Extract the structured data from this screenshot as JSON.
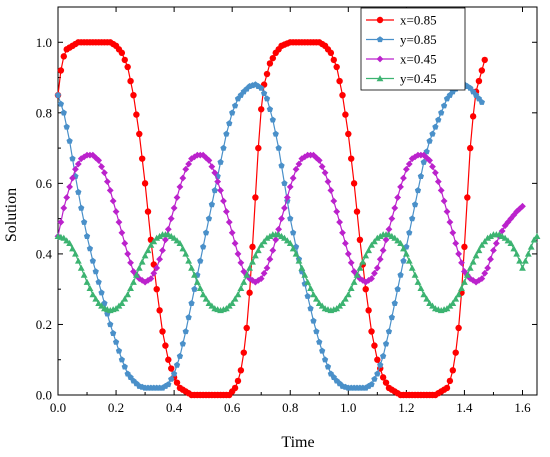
{
  "chart_data": {
    "type": "line",
    "title": "",
    "xlabel": "Time",
    "ylabel": "Solution",
    "xlim": [
      0.0,
      1.65
    ],
    "ylim": [
      0.0,
      1.1
    ],
    "xticks": [
      0.0,
      0.2,
      0.4,
      0.6,
      0.8,
      1.0,
      1.2,
      1.4,
      1.6
    ],
    "yticks": [
      0.0,
      0.2,
      0.4,
      0.6,
      0.8,
      1.0
    ],
    "xtick_labels": [
      "0.0",
      "0.2",
      "0.4",
      "0.6",
      "0.8",
      "1.0",
      "1.2",
      "1.4",
      "1.6"
    ],
    "ytick_labels": [
      "0.0",
      "0.2",
      "0.4",
      "0.6",
      "0.8",
      "1.0"
    ],
    "legend_position": "top-right",
    "grid": false,
    "series": [
      {
        "name": "x=0.85",
        "color": "#ff0000",
        "marker": "circle",
        "x_end": 1.47,
        "points": [
          [
            0.0,
            0.85
          ],
          [
            0.01,
            0.92
          ],
          [
            0.02,
            0.96
          ],
          [
            0.03,
            0.98
          ],
          [
            0.05,
            0.99
          ],
          [
            0.07,
            1.0
          ],
          [
            0.1,
            1.0
          ],
          [
            0.15,
            1.0
          ],
          [
            0.18,
            1.0
          ],
          [
            0.2,
            0.99
          ],
          [
            0.22,
            0.97
          ],
          [
            0.24,
            0.93
          ],
          [
            0.26,
            0.85
          ],
          [
            0.28,
            0.74
          ],
          [
            0.3,
            0.6
          ],
          [
            0.32,
            0.44
          ],
          [
            0.34,
            0.3
          ],
          [
            0.36,
            0.18
          ],
          [
            0.38,
            0.1
          ],
          [
            0.4,
            0.05
          ],
          [
            0.42,
            0.02
          ],
          [
            0.44,
            0.01
          ],
          [
            0.46,
            0.0
          ],
          [
            0.55,
            0.0
          ],
          [
            0.59,
            0.0
          ],
          [
            0.6,
            0.01
          ],
          [
            0.61,
            0.02
          ],
          [
            0.62,
            0.04
          ],
          [
            0.63,
            0.07
          ],
          [
            0.64,
            0.12
          ],
          [
            0.65,
            0.19
          ],
          [
            0.66,
            0.29
          ],
          [
            0.67,
            0.42
          ],
          [
            0.68,
            0.56
          ],
          [
            0.69,
            0.7
          ],
          [
            0.7,
            0.81
          ],
          [
            0.71,
            0.88
          ],
          [
            0.73,
            0.94
          ],
          [
            0.75,
            0.97
          ],
          [
            0.77,
            0.99
          ],
          [
            0.8,
            1.0
          ],
          [
            0.85,
            1.0
          ],
          [
            0.9,
            1.0
          ],
          [
            0.92,
            0.99
          ],
          [
            0.94,
            0.97
          ],
          [
            0.96,
            0.93
          ],
          [
            0.98,
            0.85
          ],
          [
            1.0,
            0.74
          ],
          [
            1.02,
            0.6
          ],
          [
            1.04,
            0.44
          ],
          [
            1.06,
            0.3
          ],
          [
            1.08,
            0.18
          ],
          [
            1.1,
            0.1
          ],
          [
            1.12,
            0.05
          ],
          [
            1.14,
            0.02
          ],
          [
            1.16,
            0.01
          ],
          [
            1.18,
            0.0
          ],
          [
            1.27,
            0.0
          ],
          [
            1.3,
            0.0
          ],
          [
            1.32,
            0.01
          ],
          [
            1.34,
            0.02
          ],
          [
            1.35,
            0.04
          ],
          [
            1.36,
            0.07
          ],
          [
            1.37,
            0.12
          ],
          [
            1.38,
            0.19
          ],
          [
            1.39,
            0.29
          ],
          [
            1.4,
            0.42
          ],
          [
            1.41,
            0.56
          ],
          [
            1.42,
            0.7
          ],
          [
            1.43,
            0.79
          ],
          [
            1.44,
            0.86
          ],
          [
            1.46,
            0.92
          ],
          [
            1.47,
            0.95
          ]
        ]
      },
      {
        "name": "y=0.85",
        "color": "#4a90c9",
        "marker": "pentagon",
        "x_end": 1.46,
        "points": [
          [
            0.0,
            0.85
          ],
          [
            0.02,
            0.8
          ],
          [
            0.04,
            0.72
          ],
          [
            0.06,
            0.62
          ],
          [
            0.08,
            0.53
          ],
          [
            0.1,
            0.45
          ],
          [
            0.12,
            0.38
          ],
          [
            0.14,
            0.32
          ],
          [
            0.16,
            0.26
          ],
          [
            0.18,
            0.2
          ],
          [
            0.2,
            0.15
          ],
          [
            0.22,
            0.1
          ],
          [
            0.24,
            0.06
          ],
          [
            0.26,
            0.04
          ],
          [
            0.28,
            0.025
          ],
          [
            0.3,
            0.02
          ],
          [
            0.34,
            0.02
          ],
          [
            0.36,
            0.02
          ],
          [
            0.38,
            0.03
          ],
          [
            0.4,
            0.06
          ],
          [
            0.42,
            0.11
          ],
          [
            0.44,
            0.18
          ],
          [
            0.46,
            0.26
          ],
          [
            0.48,
            0.34
          ],
          [
            0.5,
            0.42
          ],
          [
            0.52,
            0.5
          ],
          [
            0.54,
            0.58
          ],
          [
            0.56,
            0.66
          ],
          [
            0.58,
            0.74
          ],
          [
            0.6,
            0.8
          ],
          [
            0.62,
            0.84
          ],
          [
            0.64,
            0.86
          ],
          [
            0.66,
            0.875
          ],
          [
            0.68,
            0.88
          ],
          [
            0.7,
            0.87
          ],
          [
            0.72,
            0.84
          ],
          [
            0.74,
            0.78
          ],
          [
            0.76,
            0.7
          ],
          [
            0.78,
            0.6
          ],
          [
            0.8,
            0.5
          ],
          [
            0.82,
            0.42
          ],
          [
            0.84,
            0.35
          ],
          [
            0.86,
            0.28
          ],
          [
            0.88,
            0.21
          ],
          [
            0.9,
            0.15
          ],
          [
            0.92,
            0.1
          ],
          [
            0.94,
            0.06
          ],
          [
            0.96,
            0.04
          ],
          [
            0.98,
            0.025
          ],
          [
            1.0,
            0.02
          ],
          [
            1.06,
            0.02
          ],
          [
            1.08,
            0.03
          ],
          [
            1.1,
            0.06
          ],
          [
            1.12,
            0.11
          ],
          [
            1.14,
            0.18
          ],
          [
            1.16,
            0.26
          ],
          [
            1.18,
            0.34
          ],
          [
            1.2,
            0.42
          ],
          [
            1.22,
            0.5
          ],
          [
            1.24,
            0.58
          ],
          [
            1.26,
            0.66
          ],
          [
            1.28,
            0.72
          ],
          [
            1.3,
            0.76
          ],
          [
            1.32,
            0.8
          ],
          [
            1.34,
            0.84
          ],
          [
            1.36,
            0.86
          ],
          [
            1.38,
            0.875
          ],
          [
            1.4,
            0.88
          ],
          [
            1.42,
            0.87
          ],
          [
            1.44,
            0.85
          ],
          [
            1.46,
            0.83
          ]
        ]
      },
      {
        "name": "x=0.45",
        "color": "#bb22cc",
        "marker": "diamond",
        "x_end": 1.6,
        "points": [
          [
            0.0,
            0.45
          ],
          [
            0.02,
            0.53
          ],
          [
            0.04,
            0.59
          ],
          [
            0.06,
            0.64
          ],
          [
            0.08,
            0.67
          ],
          [
            0.1,
            0.68
          ],
          [
            0.12,
            0.68
          ],
          [
            0.14,
            0.665
          ],
          [
            0.16,
            0.63
          ],
          [
            0.18,
            0.58
          ],
          [
            0.2,
            0.52
          ],
          [
            0.22,
            0.46
          ],
          [
            0.24,
            0.4
          ],
          [
            0.26,
            0.35
          ],
          [
            0.28,
            0.33
          ],
          [
            0.3,
            0.32
          ],
          [
            0.32,
            0.33
          ],
          [
            0.34,
            0.36
          ],
          [
            0.36,
            0.41
          ],
          [
            0.38,
            0.47
          ],
          [
            0.4,
            0.53
          ],
          [
            0.42,
            0.59
          ],
          [
            0.44,
            0.64
          ],
          [
            0.46,
            0.67
          ],
          [
            0.48,
            0.68
          ],
          [
            0.5,
            0.68
          ],
          [
            0.52,
            0.665
          ],
          [
            0.54,
            0.63
          ],
          [
            0.56,
            0.58
          ],
          [
            0.58,
            0.52
          ],
          [
            0.6,
            0.46
          ],
          [
            0.62,
            0.4
          ],
          [
            0.64,
            0.35
          ],
          [
            0.66,
            0.33
          ],
          [
            0.68,
            0.32
          ],
          [
            0.7,
            0.33
          ],
          [
            0.72,
            0.36
          ],
          [
            0.74,
            0.41
          ],
          [
            0.76,
            0.47
          ],
          [
            0.78,
            0.53
          ],
          [
            0.8,
            0.59
          ],
          [
            0.82,
            0.64
          ],
          [
            0.84,
            0.67
          ],
          [
            0.86,
            0.68
          ],
          [
            0.88,
            0.68
          ],
          [
            0.9,
            0.665
          ],
          [
            0.92,
            0.63
          ],
          [
            0.94,
            0.58
          ],
          [
            0.96,
            0.52
          ],
          [
            0.98,
            0.46
          ],
          [
            1.0,
            0.4
          ],
          [
            1.02,
            0.35
          ],
          [
            1.04,
            0.33
          ],
          [
            1.06,
            0.32
          ],
          [
            1.08,
            0.33
          ],
          [
            1.1,
            0.36
          ],
          [
            1.12,
            0.41
          ],
          [
            1.14,
            0.47
          ],
          [
            1.16,
            0.53
          ],
          [
            1.18,
            0.59
          ],
          [
            1.2,
            0.64
          ],
          [
            1.22,
            0.67
          ],
          [
            1.24,
            0.68
          ],
          [
            1.26,
            0.68
          ],
          [
            1.28,
            0.665
          ],
          [
            1.3,
            0.63
          ],
          [
            1.32,
            0.58
          ],
          [
            1.34,
            0.52
          ],
          [
            1.36,
            0.46
          ],
          [
            1.38,
            0.4
          ],
          [
            1.4,
            0.35
          ],
          [
            1.42,
            0.33
          ],
          [
            1.44,
            0.32
          ],
          [
            1.46,
            0.33
          ],
          [
            1.48,
            0.36
          ],
          [
            1.5,
            0.41
          ],
          [
            1.52,
            0.45
          ],
          [
            1.54,
            0.48
          ],
          [
            1.56,
            0.5
          ],
          [
            1.58,
            0.52
          ],
          [
            1.6,
            0.535
          ]
        ]
      },
      {
        "name": "y=0.45",
        "color": "#3cb371",
        "marker": "triangle",
        "x_end": 1.65,
        "points": [
          [
            0.0,
            0.45
          ],
          [
            0.02,
            0.445
          ],
          [
            0.04,
            0.43
          ],
          [
            0.06,
            0.4
          ],
          [
            0.08,
            0.36
          ],
          [
            0.1,
            0.32
          ],
          [
            0.12,
            0.285
          ],
          [
            0.14,
            0.26
          ],
          [
            0.16,
            0.245
          ],
          [
            0.18,
            0.24
          ],
          [
            0.2,
            0.245
          ],
          [
            0.22,
            0.26
          ],
          [
            0.24,
            0.285
          ],
          [
            0.26,
            0.32
          ],
          [
            0.28,
            0.36
          ],
          [
            0.3,
            0.395
          ],
          [
            0.32,
            0.425
          ],
          [
            0.34,
            0.445
          ],
          [
            0.36,
            0.455
          ],
          [
            0.38,
            0.455
          ],
          [
            0.4,
            0.445
          ],
          [
            0.42,
            0.43
          ],
          [
            0.44,
            0.4
          ],
          [
            0.46,
            0.36
          ],
          [
            0.48,
            0.32
          ],
          [
            0.5,
            0.285
          ],
          [
            0.52,
            0.26
          ],
          [
            0.54,
            0.245
          ],
          [
            0.56,
            0.24
          ],
          [
            0.58,
            0.245
          ],
          [
            0.6,
            0.26
          ],
          [
            0.62,
            0.285
          ],
          [
            0.64,
            0.32
          ],
          [
            0.66,
            0.36
          ],
          [
            0.68,
            0.395
          ],
          [
            0.7,
            0.425
          ],
          [
            0.72,
            0.445
          ],
          [
            0.74,
            0.455
          ],
          [
            0.76,
            0.455
          ],
          [
            0.78,
            0.445
          ],
          [
            0.8,
            0.43
          ],
          [
            0.82,
            0.4
          ],
          [
            0.84,
            0.36
          ],
          [
            0.86,
            0.32
          ],
          [
            0.88,
            0.285
          ],
          [
            0.9,
            0.26
          ],
          [
            0.92,
            0.245
          ],
          [
            0.94,
            0.24
          ],
          [
            0.96,
            0.245
          ],
          [
            0.98,
            0.26
          ],
          [
            1.0,
            0.285
          ],
          [
            1.02,
            0.32
          ],
          [
            1.04,
            0.36
          ],
          [
            1.06,
            0.395
          ],
          [
            1.08,
            0.425
          ],
          [
            1.1,
            0.445
          ],
          [
            1.12,
            0.455
          ],
          [
            1.14,
            0.455
          ],
          [
            1.16,
            0.445
          ],
          [
            1.18,
            0.43
          ],
          [
            1.2,
            0.4
          ],
          [
            1.22,
            0.36
          ],
          [
            1.24,
            0.32
          ],
          [
            1.26,
            0.285
          ],
          [
            1.28,
            0.26
          ],
          [
            1.3,
            0.245
          ],
          [
            1.32,
            0.24
          ],
          [
            1.34,
            0.245
          ],
          [
            1.36,
            0.26
          ],
          [
            1.38,
            0.285
          ],
          [
            1.4,
            0.32
          ],
          [
            1.42,
            0.36
          ],
          [
            1.44,
            0.395
          ],
          [
            1.46,
            0.425
          ],
          [
            1.48,
            0.445
          ],
          [
            1.5,
            0.455
          ],
          [
            1.52,
            0.455
          ],
          [
            1.54,
            0.445
          ],
          [
            1.56,
            0.43
          ],
          [
            1.58,
            0.4
          ],
          [
            1.6,
            0.36
          ],
          [
            1.62,
            0.4
          ],
          [
            1.64,
            0.44
          ],
          [
            1.65,
            0.45
          ]
        ]
      }
    ]
  }
}
